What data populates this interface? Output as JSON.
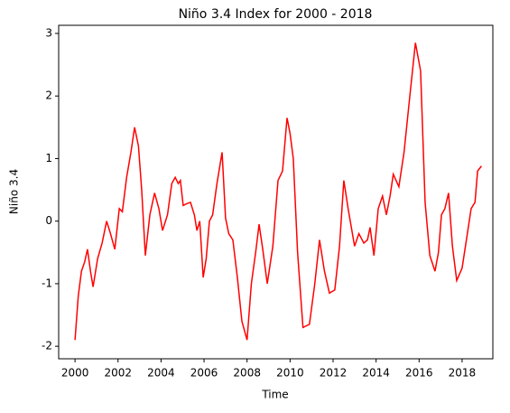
{
  "chart_data": {
    "type": "line",
    "title": "Niño 3.4 Index for 2000 - 2018",
    "xlabel": "Time",
    "ylabel": "Niño 3.4",
    "x": [
      2000.0,
      2000.15,
      2000.3,
      2000.45,
      2000.58,
      2000.72,
      2000.84,
      2001.05,
      2001.26,
      2001.47,
      2001.65,
      2001.85,
      2002.06,
      2002.2,
      2002.4,
      2002.6,
      2002.77,
      2002.95,
      2003.1,
      2003.27,
      2003.48,
      2003.7,
      2003.9,
      2004.07,
      2004.3,
      2004.5,
      2004.66,
      2004.8,
      2004.9,
      2005.03,
      2005.2,
      2005.37,
      2005.55,
      2005.67,
      2005.8,
      2005.96,
      2006.1,
      2006.25,
      2006.4,
      2006.6,
      2006.84,
      2007.0,
      2007.15,
      2007.34,
      2007.55,
      2007.76,
      2008.0,
      2008.2,
      2008.4,
      2008.56,
      2008.73,
      2008.94,
      2009.2,
      2009.44,
      2009.65,
      2009.86,
      2010.0,
      2010.15,
      2010.35,
      2010.6,
      2010.9,
      2011.15,
      2011.37,
      2011.6,
      2011.83,
      2012.08,
      2012.3,
      2012.5,
      2012.7,
      2012.85,
      2013.0,
      2013.2,
      2013.43,
      2013.6,
      2013.72,
      2013.9,
      2014.1,
      2014.3,
      2014.48,
      2014.65,
      2014.8,
      2015.06,
      2015.3,
      2015.57,
      2015.83,
      2016.07,
      2016.28,
      2016.5,
      2016.74,
      2016.9,
      2017.04,
      2017.2,
      2017.37,
      2017.55,
      2017.75,
      2018.0,
      2018.2,
      2018.42,
      2018.6,
      2018.72,
      2018.9
    ],
    "series": [
      {
        "name": "Niño 3.4",
        "color": "red",
        "values": [
          -1.9,
          -1.2,
          -0.8,
          -0.65,
          -0.45,
          -0.8,
          -1.05,
          -0.6,
          -0.35,
          0.0,
          -0.2,
          -0.45,
          0.2,
          0.15,
          0.7,
          1.1,
          1.5,
          1.2,
          0.5,
          -0.55,
          0.1,
          0.45,
          0.2,
          -0.15,
          0.1,
          0.6,
          0.7,
          0.6,
          0.65,
          0.25,
          0.28,
          0.3,
          0.1,
          -0.15,
          0.0,
          -0.9,
          -0.6,
          0.0,
          0.1,
          0.6,
          1.1,
          0.05,
          -0.2,
          -0.3,
          -0.9,
          -1.6,
          -1.9,
          -1.0,
          -0.5,
          -0.05,
          -0.45,
          -1.0,
          -0.4,
          0.65,
          0.8,
          1.65,
          1.4,
          1.0,
          -0.5,
          -1.7,
          -1.65,
          -1.0,
          -0.3,
          -0.8,
          -1.15,
          -1.1,
          -0.4,
          0.65,
          0.2,
          -0.1,
          -0.4,
          -0.2,
          -0.35,
          -0.3,
          -0.1,
          -0.55,
          0.2,
          0.4,
          0.1,
          0.4,
          0.75,
          0.55,
          1.1,
          2.0,
          2.85,
          2.4,
          0.3,
          -0.55,
          -0.8,
          -0.5,
          0.1,
          0.2,
          0.45,
          -0.4,
          -0.95,
          -0.75,
          -0.3,
          0.2,
          0.3,
          0.8,
          0.88
        ]
      }
    ],
    "xlim": [
      1999.24,
      2019.43
    ],
    "xticks": [
      2000,
      2002,
      2004,
      2006,
      2008,
      2010,
      2012,
      2014,
      2016,
      2018
    ],
    "ylim": [
      -2.2,
      3.13
    ],
    "yticks": [
      -2,
      -1,
      0,
      1,
      2,
      3
    ]
  }
}
